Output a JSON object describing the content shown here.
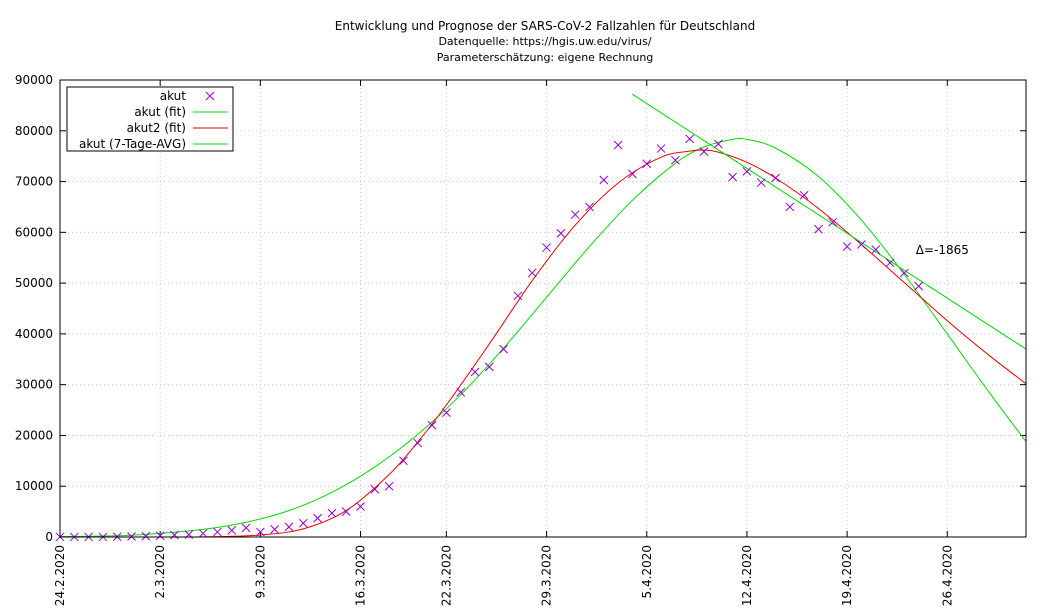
{
  "colors": {
    "points": "#9400d3",
    "fit": "#00dd00",
    "fit2": "#ee0000",
    "avg": "#00dd00"
  },
  "chart_data": {
    "type": "scatter",
    "title": "Entwicklung und Prognose der SARS-CoV-2 Fallzahlen für Deutschland",
    "subtitle": "Datenquelle: https://hgis.uw.edu/virus/",
    "subtitle2": "Parameterschätzung: eigene Rechnung",
    "xlim": [
      0,
      67.5
    ],
    "ylim": [
      0,
      90000
    ],
    "grid": true,
    "legend_position": "top-left",
    "yticks": [
      0,
      10000,
      20000,
      30000,
      40000,
      50000,
      60000,
      70000,
      80000,
      90000
    ],
    "xticks": [
      {
        "day": 0,
        "label": "24.2.2020"
      },
      {
        "day": 7,
        "label": "2.3.2020"
      },
      {
        "day": 14,
        "label": "9.3.2020"
      },
      {
        "day": 21,
        "label": "16.3.2020"
      },
      {
        "day": 27,
        "label": "22.3.2020"
      },
      {
        "day": 34,
        "label": "29.3.2020"
      },
      {
        "day": 41,
        "label": "5.4.2020"
      },
      {
        "day": 48,
        "label": "12.4.2020"
      },
      {
        "day": 55,
        "label": "19.4.2020"
      },
      {
        "day": 62,
        "label": "26.4.2020"
      }
    ],
    "annotation": {
      "text": "Δ=-1865",
      "day": 59.8,
      "value": 56500
    },
    "series": [
      {
        "name": "akut",
        "kind": "points",
        "x": [
          0,
          1,
          2,
          3,
          4,
          5,
          6,
          7,
          8,
          9,
          10,
          11,
          12,
          13,
          14,
          15,
          16,
          17,
          18,
          19,
          20,
          21,
          22,
          23,
          24,
          25,
          26,
          27,
          28,
          29,
          30,
          31,
          32,
          33,
          34,
          35,
          36,
          37,
          38,
          39,
          40,
          41,
          42,
          43,
          44,
          45,
          46,
          47,
          48,
          49,
          50,
          51,
          52,
          53,
          54,
          55,
          56,
          57,
          58,
          59,
          60
        ],
        "y": [
          16,
          14,
          14,
          15,
          50,
          100,
          150,
          250,
          400,
          500,
          700,
          1000,
          1300,
          1800,
          1000,
          1500,
          2000,
          2700,
          3700,
          4700,
          5000,
          6000,
          9400,
          10000,
          15000,
          18500,
          22000,
          24500,
          28500,
          32500,
          33500,
          37000,
          47500,
          52000,
          57000,
          59800,
          63500,
          65000,
          70300,
          77200,
          71500,
          73500,
          76500,
          74200,
          78400,
          75900,
          77400,
          70900,
          72000,
          69800,
          70700,
          65000,
          67300,
          60600,
          62000,
          57200,
          57600,
          56600,
          54000,
          52000,
          49400
        ]
      },
      {
        "name": "akut (fit)",
        "kind": "curve",
        "x": [
          0,
          5,
          10,
          13,
          16,
          19,
          22,
          25,
          28,
          31,
          34,
          37,
          40,
          43,
          45,
          47,
          48,
          50,
          53,
          56,
          59,
          62,
          65,
          67.5
        ],
        "y": [
          80,
          350,
          1500,
          2900,
          5200,
          8800,
          13800,
          20200,
          28000,
          37200,
          47200,
          57200,
          66300,
          73600,
          76800,
          78300,
          78300,
          76600,
          71000,
          62400,
          51700,
          40000,
          28200,
          18800
        ]
      },
      {
        "name": "akut2 (fit)",
        "kind": "curve",
        "x": [
          0,
          5,
          10,
          14,
          17,
          20,
          23,
          25,
          27,
          30,
          33,
          36,
          39,
          42,
          44,
          45,
          46,
          48,
          50,
          53,
          56,
          59,
          62,
          65,
          67.5
        ],
        "y": [
          0,
          0,
          20,
          400,
          1600,
          5200,
          12300,
          18700,
          26000,
          38000,
          50500,
          61400,
          69700,
          74800,
          76000,
          76200,
          75800,
          73800,
          70700,
          64700,
          57600,
          50100,
          42600,
          35600,
          30200
        ]
      },
      {
        "name": "akut (7-Tage-AVG)",
        "kind": "line",
        "x": [
          40,
          67.5
        ],
        "y": [
          87200,
          37000
        ]
      }
    ]
  }
}
